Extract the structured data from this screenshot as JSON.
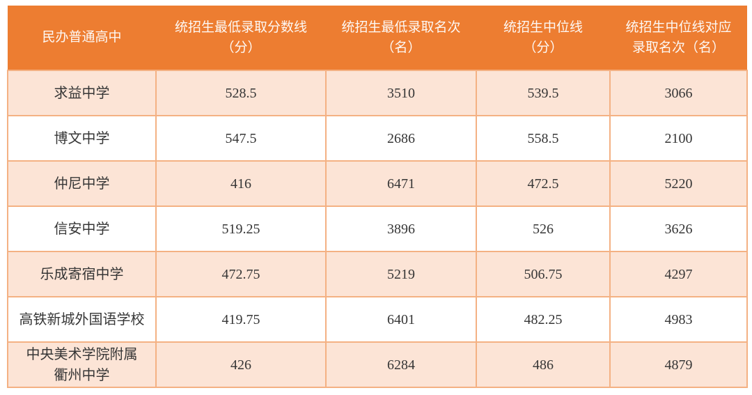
{
  "colors": {
    "header_bg": "#ed7d31",
    "header_text": "#fdf8f4",
    "row_alt_bg": "#fce4d6",
    "row_bg": "#ffffff",
    "grid_line": "#f4b183",
    "body_text": "#363636"
  },
  "table": {
    "header": [
      "民办普通高中",
      "统招生最低录取分数线\n（分）",
      "统招生最低录取名次\n（名）",
      "统招生中位线\n（分）",
      "统招生中位线对应\n录取名次（名）"
    ],
    "rows": [
      {
        "school": "求益中学",
        "min_score": "528.5",
        "min_rank": "3510",
        "median_score": "539.5",
        "median_rank": "3066"
      },
      {
        "school": "博文中学",
        "min_score": "547.5",
        "min_rank": "2686",
        "median_score": "558.5",
        "median_rank": "2100"
      },
      {
        "school": "仲尼中学",
        "min_score": "416",
        "min_rank": "6471",
        "median_score": "472.5",
        "median_rank": "5220"
      },
      {
        "school": "信安中学",
        "min_score": "519.25",
        "min_rank": "3896",
        "median_score": "526",
        "median_rank": "3626"
      },
      {
        "school": "乐成寄宿中学",
        "min_score": "472.75",
        "min_rank": "5219",
        "median_score": "506.75",
        "median_rank": "4297"
      },
      {
        "school": "高铁新城外国语学校",
        "min_score": "419.75",
        "min_rank": "6401",
        "median_score": "482.25",
        "median_rank": "4983"
      },
      {
        "school": "中央美术学院附属\n衢州中学",
        "min_score": "426",
        "min_rank": "6284",
        "median_score": "486",
        "median_rank": "4879"
      }
    ]
  },
  "chart_data": {
    "type": "table",
    "columns": [
      "民办普通高中",
      "统招生最低录取分数线（分）",
      "统招生最低录取名次（名）",
      "统招生中位线（分）",
      "统招生中位线对应录取名次（名）"
    ],
    "rows": [
      [
        "求益中学",
        528.5,
        3510,
        539.5,
        3066
      ],
      [
        "博文中学",
        547.5,
        2686,
        558.5,
        2100
      ],
      [
        "仲尼中学",
        416,
        6471,
        472.5,
        5220
      ],
      [
        "信安中学",
        519.25,
        3896,
        526,
        3626
      ],
      [
        "乐成寄宿中学",
        472.75,
        5219,
        506.75,
        4297
      ],
      [
        "高铁新城外国语学校",
        419.75,
        6401,
        482.25,
        4983
      ],
      [
        "中央美术学院附属衢州中学",
        426,
        6284,
        486,
        4879
      ]
    ],
    "layout": "header row orange, data rows alternate peach/white, all cells centered"
  }
}
